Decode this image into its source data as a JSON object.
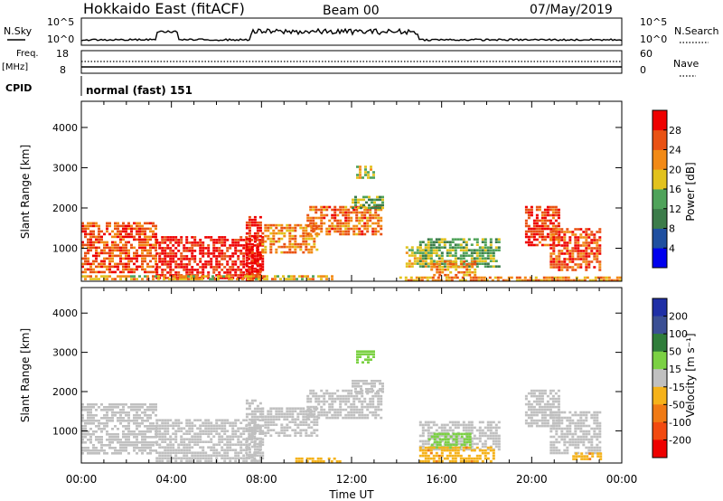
{
  "header": {
    "station": "Hokkaido East (fitACF)",
    "beam": "Beam 00",
    "date": "07/May/2019"
  },
  "labels": {
    "nsky": "N.Sky",
    "freq": "Freq.",
    "freq_unit": "[MHz]",
    "cpid": "CPID",
    "nsearch": "N.Search",
    "nave": "Nave",
    "cpid_value": "normal (fast) 151",
    "xlabel": "Time UT"
  },
  "noise_panel": {
    "left_ticks": [
      "10^5",
      "10^0"
    ],
    "right_ticks": [
      "10^5",
      "10^0"
    ]
  },
  "freq_panel": {
    "left_ticks": [
      "18",
      "8"
    ],
    "right_ticks": [
      "60",
      "0"
    ]
  },
  "colors": {
    "power_scale": [
      "#0000ee",
      "#1f4fa0",
      "#3c7c4a",
      "#4fa35a",
      "#e2c21d",
      "#f28a16",
      "#e95214",
      "#ee0000"
    ],
    "velocity_scale": [
      "#1f2fa6",
      "#3b4f94",
      "#2f7d3a",
      "#7bd143",
      "#c0c0c0",
      "#f5b21a",
      "#f07a14",
      "#f24a10",
      "#ee0000"
    ]
  },
  "chart_data": [
    {
      "type": "heatmap",
      "panel": "power",
      "xlabel": "",
      "ylabel": "Slant Range [km]",
      "x_tick_labels": [
        "00:00",
        "04:00",
        "08:00",
        "12:00",
        "16:00",
        "20:00",
        "00:00"
      ],
      "xlim_hours": [
        0,
        24
      ],
      "ylim": [
        180,
        4650
      ],
      "y_ticks": [
        1000,
        2000,
        3000,
        4000
      ],
      "colorbar": {
        "label": "Power [dB]",
        "tick_labels": [
          "4",
          "8",
          "12",
          "16",
          "20",
          "24",
          "28"
        ],
        "range": [
          0,
          32
        ]
      },
      "regions": [
        {
          "t0": 0.0,
          "t1": 3.3,
          "r0": 400,
          "r1": 1650,
          "value": 26
        },
        {
          "t0": 3.3,
          "t1": 8.0,
          "r0": 250,
          "r1": 1300,
          "value": 30
        },
        {
          "t0": 7.3,
          "t1": 8.0,
          "r0": 250,
          "r1": 1800,
          "value": 30
        },
        {
          "t0": 8.0,
          "t1": 10.5,
          "r0": 900,
          "r1": 1600,
          "value": 22
        },
        {
          "t0": 10.0,
          "t1": 13.3,
          "r0": 1350,
          "r1": 2050,
          "value": 24
        },
        {
          "t0": 12.0,
          "t1": 13.4,
          "r0": 2000,
          "r1": 2300,
          "value": 14
        },
        {
          "t0": 12.2,
          "t1": 13.0,
          "r0": 2750,
          "r1": 3050,
          "value": 18
        },
        {
          "t0": 14.4,
          "t1": 15.6,
          "r0": 550,
          "r1": 1050,
          "value": 18
        },
        {
          "t0": 15.0,
          "t1": 18.5,
          "r0": 550,
          "r1": 1250,
          "value": 14
        },
        {
          "t0": 15.5,
          "t1": 17.5,
          "r0": 350,
          "r1": 700,
          "value": 22
        },
        {
          "t0": 19.7,
          "t1": 21.2,
          "r0": 1100,
          "r1": 2050,
          "value": 28
        },
        {
          "t0": 20.8,
          "t1": 23.0,
          "r0": 450,
          "r1": 1500,
          "value": 26
        },
        {
          "t0": 0.0,
          "t1": 11.2,
          "r0": 200,
          "r1": 330,
          "value": 20
        },
        {
          "t0": 14.0,
          "t1": 24.0,
          "r0": 200,
          "r1": 300,
          "value": 22
        }
      ]
    },
    {
      "type": "heatmap",
      "panel": "velocity",
      "xlabel": "Time UT",
      "ylabel": "Slant Range [km]",
      "x_tick_labels": [
        "00:00",
        "04:00",
        "08:00",
        "12:00",
        "16:00",
        "20:00",
        "00:00"
      ],
      "xlim_hours": [
        0,
        24
      ],
      "ylim": [
        180,
        4650
      ],
      "y_ticks": [
        1000,
        2000,
        3000,
        4000
      ],
      "colorbar": {
        "label": "Velocity [m s⁻¹]",
        "tick_labels": [
          "200",
          "100",
          "50",
          "15",
          "-15",
          "-50",
          "-100",
          "-200"
        ],
        "range": [
          -250,
          250
        ]
      },
      "regions": [
        {
          "t0": 0.0,
          "t1": 3.3,
          "r0": 400,
          "r1": 1700,
          "value": 0
        },
        {
          "t0": 3.3,
          "t1": 8.0,
          "r0": 250,
          "r1": 1300,
          "value": 0
        },
        {
          "t0": 7.3,
          "t1": 8.0,
          "r0": 250,
          "r1": 1800,
          "value": 0
        },
        {
          "t0": 8.0,
          "t1": 10.5,
          "r0": 900,
          "r1": 1600,
          "value": 0
        },
        {
          "t0": 10.0,
          "t1": 13.3,
          "r0": 1350,
          "r1": 2050,
          "value": 0
        },
        {
          "t0": 12.0,
          "t1": 13.4,
          "r0": 2000,
          "r1": 2300,
          "value": 0
        },
        {
          "t0": 12.2,
          "t1": 13.0,
          "r0": 2750,
          "r1": 3050,
          "value": 30
        },
        {
          "t0": 15.0,
          "t1": 18.5,
          "r0": 550,
          "r1": 1250,
          "value": 0
        },
        {
          "t0": 15.4,
          "t1": 17.3,
          "r0": 550,
          "r1": 950,
          "value": 35
        },
        {
          "t0": 15.0,
          "t1": 18.3,
          "r0": 250,
          "r1": 600,
          "value": -40
        },
        {
          "t0": 19.7,
          "t1": 21.2,
          "r0": 1100,
          "r1": 2050,
          "value": 0
        },
        {
          "t0": 20.8,
          "t1": 23.0,
          "r0": 450,
          "r1": 1500,
          "value": 0
        },
        {
          "t0": 9.5,
          "t1": 11.5,
          "r0": 200,
          "r1": 320,
          "value": -30
        },
        {
          "t0": 21.8,
          "t1": 23.2,
          "r0": 250,
          "r1": 450,
          "value": -40
        }
      ]
    }
  ]
}
